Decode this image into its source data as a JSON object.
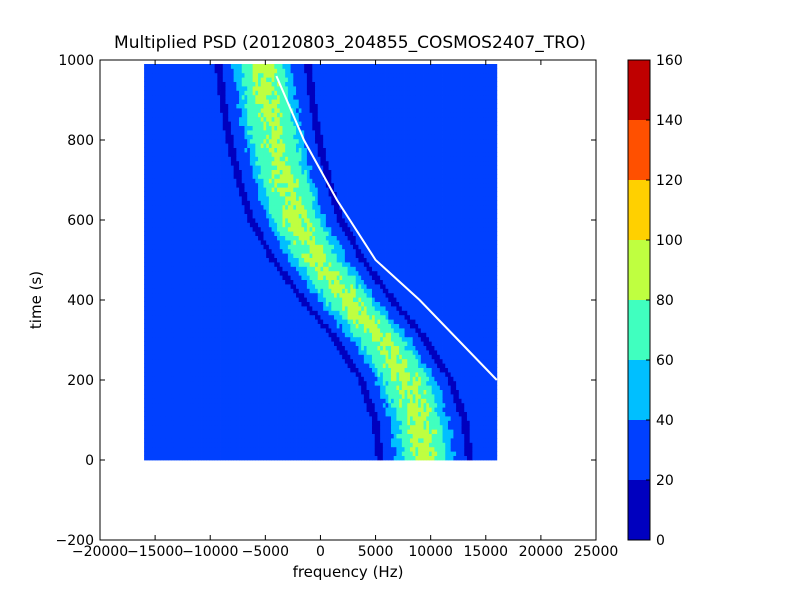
{
  "chart_data": {
    "type": "heatmap",
    "title": "Multiplied PSD (20120803_204855_COSMOS2407_TRO)",
    "xlabel": "frequency (Hz)",
    "ylabel": "time (s)",
    "xlim": [
      -20000,
      25000
    ],
    "ylim": [
      -200,
      1000
    ],
    "xticks": [
      -20000,
      -15000,
      -10000,
      -5000,
      0,
      5000,
      10000,
      15000,
      20000,
      25000
    ],
    "yticks": [
      -200,
      0,
      200,
      400,
      600,
      800,
      1000
    ],
    "data_extent": {
      "x": [
        -16000,
        16000
      ],
      "y": [
        0,
        990
      ]
    },
    "background_level": 25,
    "main_signal": {
      "description": "broad S-shaped band, frequency vs time",
      "center_freq_at_time": [
        {
          "t": 0,
          "f": 9500
        },
        {
          "t": 100,
          "f": 9000
        },
        {
          "t": 200,
          "f": 7800
        },
        {
          "t": 300,
          "f": 5500
        },
        {
          "t": 400,
          "f": 2500
        },
        {
          "t": 500,
          "f": -200
        },
        {
          "t": 600,
          "f": -2200
        },
        {
          "t": 700,
          "f": -3300
        },
        {
          "t": 800,
          "f": -4200
        },
        {
          "t": 900,
          "f": -4800
        },
        {
          "t": 990,
          "f": -5200
        }
      ],
      "width_hz": 6500,
      "peak_level": 85
    },
    "white_trace": [
      {
        "t": 960,
        "f": -4000
      },
      {
        "t": 800,
        "f": -1500
      },
      {
        "t": 650,
        "f": 1500
      },
      {
        "t": 500,
        "f": 5000
      },
      {
        "t": 400,
        "f": 9000
      },
      {
        "t": 300,
        "f": 12500
      },
      {
        "t": 200,
        "f": 16000
      }
    ],
    "colorbar": {
      "ticks": [
        0,
        20,
        40,
        60,
        80,
        100,
        120,
        140,
        160
      ],
      "levels": [
        0,
        20,
        40,
        60,
        80,
        100,
        120,
        140,
        160
      ],
      "colors": [
        "#0000bf",
        "#0040ff",
        "#00bfff",
        "#40ffbf",
        "#bfff40",
        "#ffd000",
        "#ff5000",
        "#bf0000"
      ]
    }
  }
}
